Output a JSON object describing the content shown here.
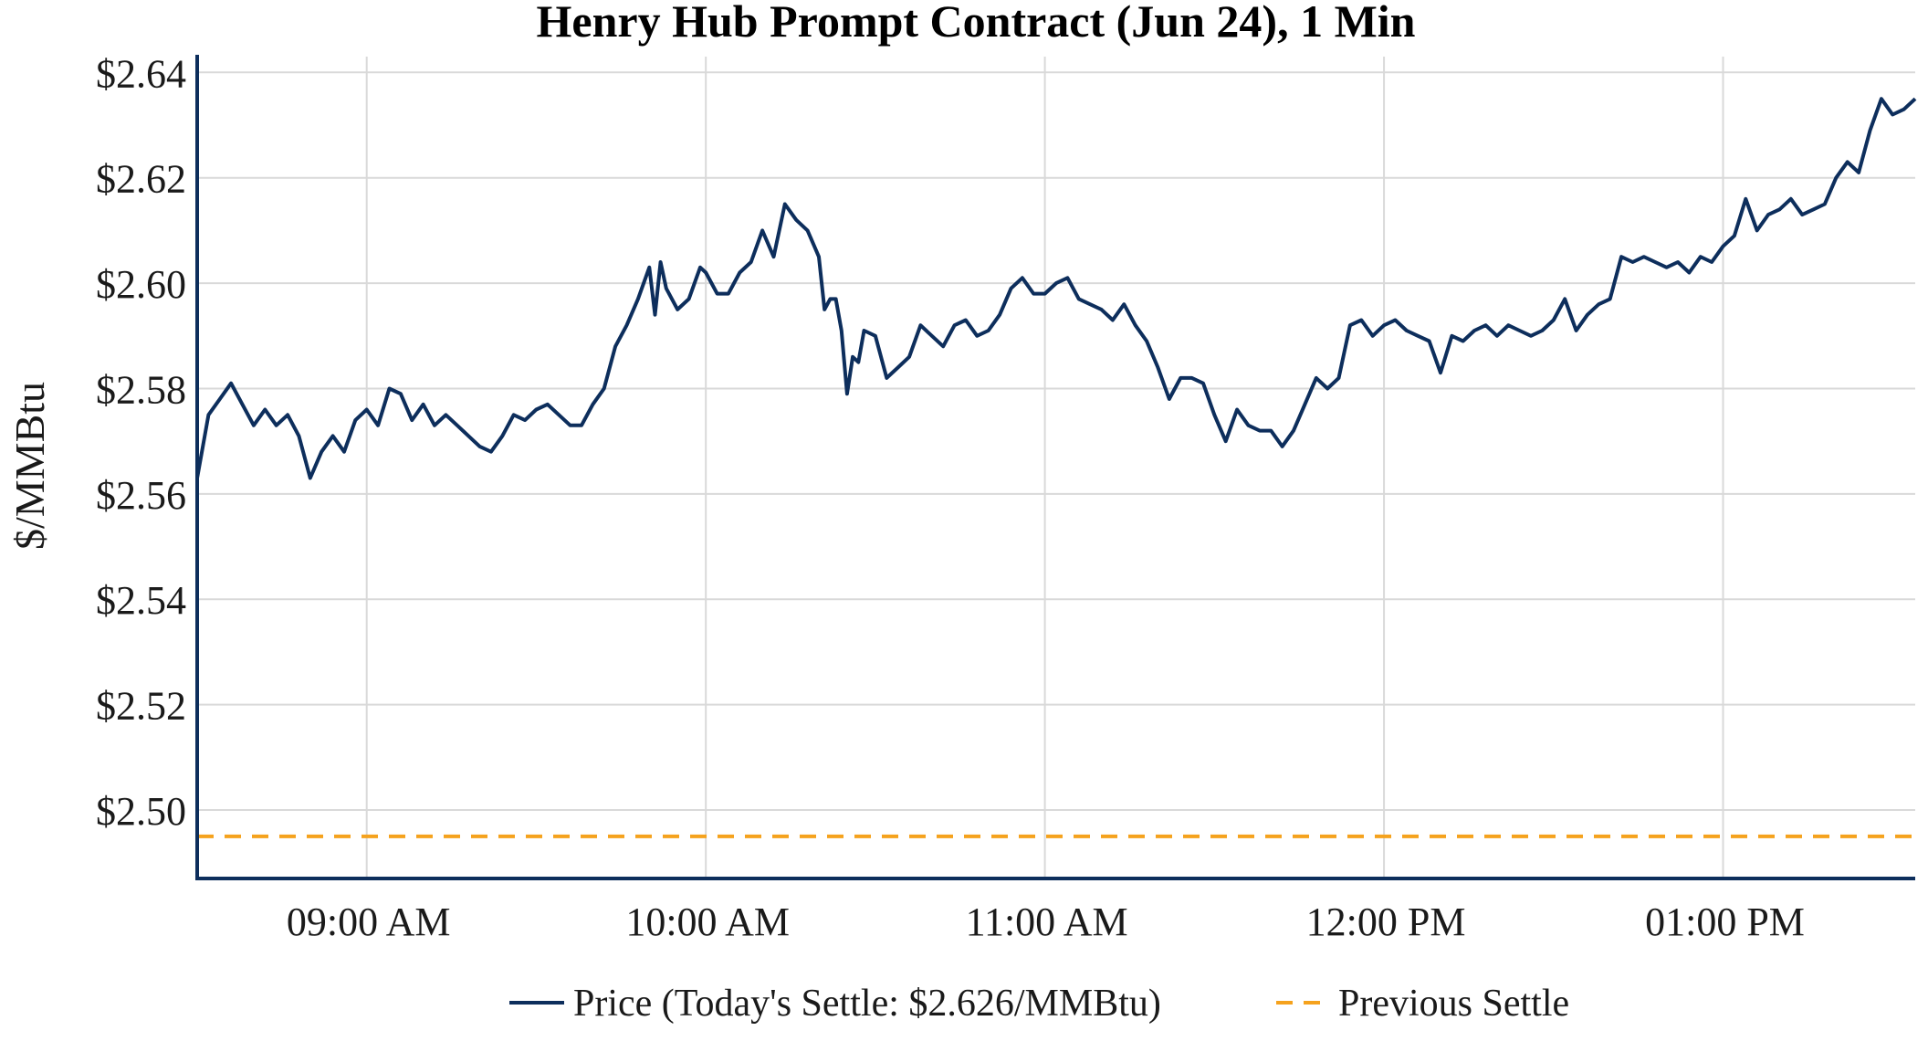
{
  "chart_data": {
    "type": "line",
    "title": "Henry Hub Prompt Contract (Jun 24), 1 Min",
    "xlabel": "",
    "ylabel": "$/MMBtu",
    "x_range": [
      "08:30 AM",
      "01:34 PM"
    ],
    "x_ticks": [
      "09:00 AM",
      "10:00 AM",
      "11:00 AM",
      "12:00 PM",
      "01:00 PM"
    ],
    "ylim": [
      2.487,
      2.643
    ],
    "y_ticks": [
      "$2.50",
      "$2.52",
      "$2.54",
      "$2.56",
      "$2.58",
      "$2.60",
      "$2.62",
      "$2.64"
    ],
    "grid": true,
    "legend_position": "bottom-center",
    "colors": {
      "price": "#0d2e5c",
      "previous_settle": "#f5a21d",
      "grid": "#d9d9d9",
      "axis": "#0d2e5c"
    },
    "series": [
      {
        "name": "Price (Today's Settle: $2.626/MMBtu)",
        "style": "solid",
        "points": [
          [
            "08:30 AM",
            2.563
          ],
          [
            "08:32 AM",
            2.575
          ],
          [
            "08:34 AM",
            2.578
          ],
          [
            "08:36 AM",
            2.581
          ],
          [
            "08:38 AM",
            2.577
          ],
          [
            "08:40 AM",
            2.573
          ],
          [
            "08:42 AM",
            2.576
          ],
          [
            "08:44 AM",
            2.573
          ],
          [
            "08:46 AM",
            2.575
          ],
          [
            "08:48 AM",
            2.571
          ],
          [
            "08:50 AM",
            2.563
          ],
          [
            "08:52 AM",
            2.568
          ],
          [
            "08:54 AM",
            2.571
          ],
          [
            "08:56 AM",
            2.568
          ],
          [
            "08:58 AM",
            2.574
          ],
          [
            "09:00 AM",
            2.576
          ],
          [
            "09:02 AM",
            2.573
          ],
          [
            "09:04 AM",
            2.58
          ],
          [
            "09:06 AM",
            2.579
          ],
          [
            "09:08 AM",
            2.574
          ],
          [
            "09:10 AM",
            2.577
          ],
          [
            "09:12 AM",
            2.573
          ],
          [
            "09:14 AM",
            2.575
          ],
          [
            "09:16 AM",
            2.573
          ],
          [
            "09:18 AM",
            2.571
          ],
          [
            "09:20 AM",
            2.569
          ],
          [
            "09:22 AM",
            2.568
          ],
          [
            "09:24 AM",
            2.571
          ],
          [
            "09:26 AM",
            2.575
          ],
          [
            "09:28 AM",
            2.574
          ],
          [
            "09:30 AM",
            2.576
          ],
          [
            "09:32 AM",
            2.577
          ],
          [
            "09:34 AM",
            2.575
          ],
          [
            "09:36 AM",
            2.573
          ],
          [
            "09:38 AM",
            2.573
          ],
          [
            "09:40 AM",
            2.577
          ],
          [
            "09:42 AM",
            2.58
          ],
          [
            "09:44 AM",
            2.588
          ],
          [
            "09:46 AM",
            2.592
          ],
          [
            "09:48 AM",
            2.597
          ],
          [
            "09:50 AM",
            2.603
          ],
          [
            "09:51 AM",
            2.594
          ],
          [
            "09:52 AM",
            2.604
          ],
          [
            "09:53 AM",
            2.599
          ],
          [
            "09:55 AM",
            2.595
          ],
          [
            "09:57 AM",
            2.597
          ],
          [
            "09:59 AM",
            2.603
          ],
          [
            "10:00 AM",
            2.602
          ],
          [
            "10:02 AM",
            2.598
          ],
          [
            "10:04 AM",
            2.598
          ],
          [
            "10:06 AM",
            2.602
          ],
          [
            "10:08 AM",
            2.604
          ],
          [
            "10:10 AM",
            2.61
          ],
          [
            "10:12 AM",
            2.605
          ],
          [
            "10:14 AM",
            2.615
          ],
          [
            "10:16 AM",
            2.612
          ],
          [
            "10:18 AM",
            2.61
          ],
          [
            "10:20 AM",
            2.605
          ],
          [
            "10:21 AM",
            2.595
          ],
          [
            "10:22 AM",
            2.597
          ],
          [
            "10:23 AM",
            2.597
          ],
          [
            "10:24 AM",
            2.591
          ],
          [
            "10:25 AM",
            2.579
          ],
          [
            "10:26 AM",
            2.586
          ],
          [
            "10:27 AM",
            2.585
          ],
          [
            "10:28 AM",
            2.591
          ],
          [
            "10:30 AM",
            2.59
          ],
          [
            "10:32 AM",
            2.582
          ],
          [
            "10:34 AM",
            2.584
          ],
          [
            "10:36 AM",
            2.586
          ],
          [
            "10:38 AM",
            2.592
          ],
          [
            "10:40 AM",
            2.59
          ],
          [
            "10:42 AM",
            2.588
          ],
          [
            "10:44 AM",
            2.592
          ],
          [
            "10:46 AM",
            2.593
          ],
          [
            "10:48 AM",
            2.59
          ],
          [
            "10:50 AM",
            2.591
          ],
          [
            "10:52 AM",
            2.594
          ],
          [
            "10:54 AM",
            2.599
          ],
          [
            "10:56 AM",
            2.601
          ],
          [
            "10:58 AM",
            2.598
          ],
          [
            "11:00 AM",
            2.598
          ],
          [
            "11:02 AM",
            2.6
          ],
          [
            "11:04 AM",
            2.601
          ],
          [
            "11:06 AM",
            2.597
          ],
          [
            "11:08 AM",
            2.596
          ],
          [
            "11:10 AM",
            2.595
          ],
          [
            "11:12 AM",
            2.593
          ],
          [
            "11:14 AM",
            2.596
          ],
          [
            "11:16 AM",
            2.592
          ],
          [
            "11:18 AM",
            2.589
          ],
          [
            "11:20 AM",
            2.584
          ],
          [
            "11:22 AM",
            2.578
          ],
          [
            "11:24 AM",
            2.582
          ],
          [
            "11:26 AM",
            2.582
          ],
          [
            "11:28 AM",
            2.581
          ],
          [
            "11:30 AM",
            2.575
          ],
          [
            "11:32 AM",
            2.57
          ],
          [
            "11:34 AM",
            2.576
          ],
          [
            "11:36 AM",
            2.573
          ],
          [
            "11:38 AM",
            2.572
          ],
          [
            "11:40 AM",
            2.572
          ],
          [
            "11:42 AM",
            2.569
          ],
          [
            "11:44 AM",
            2.572
          ],
          [
            "11:46 AM",
            2.577
          ],
          [
            "11:48 AM",
            2.582
          ],
          [
            "11:50 AM",
            2.58
          ],
          [
            "11:52 AM",
            2.582
          ],
          [
            "11:54 AM",
            2.592
          ],
          [
            "11:56 AM",
            2.593
          ],
          [
            "11:58 AM",
            2.59
          ],
          [
            "12:00 PM",
            2.592
          ],
          [
            "12:02 PM",
            2.593
          ],
          [
            "12:04 PM",
            2.591
          ],
          [
            "12:06 PM",
            2.59
          ],
          [
            "12:08 PM",
            2.589
          ],
          [
            "12:10 PM",
            2.583
          ],
          [
            "12:12 PM",
            2.59
          ],
          [
            "12:14 PM",
            2.589
          ],
          [
            "12:16 PM",
            2.591
          ],
          [
            "12:18 PM",
            2.592
          ],
          [
            "12:20 PM",
            2.59
          ],
          [
            "12:22 PM",
            2.592
          ],
          [
            "12:24 PM",
            2.591
          ],
          [
            "12:26 PM",
            2.59
          ],
          [
            "12:28 PM",
            2.591
          ],
          [
            "12:30 PM",
            2.593
          ],
          [
            "12:32 PM",
            2.597
          ],
          [
            "12:34 PM",
            2.591
          ],
          [
            "12:36 PM",
            2.594
          ],
          [
            "12:38 PM",
            2.596
          ],
          [
            "12:40 PM",
            2.597
          ],
          [
            "12:42 PM",
            2.605
          ],
          [
            "12:44 PM",
            2.604
          ],
          [
            "12:46 PM",
            2.605
          ],
          [
            "12:48 PM",
            2.604
          ],
          [
            "12:50 PM",
            2.603
          ],
          [
            "12:52 PM",
            2.604
          ],
          [
            "12:54 PM",
            2.602
          ],
          [
            "12:56 PM",
            2.605
          ],
          [
            "12:58 PM",
            2.604
          ],
          [
            "01:00 PM",
            2.607
          ],
          [
            "01:02 PM",
            2.609
          ],
          [
            "01:04 PM",
            2.616
          ],
          [
            "01:06 PM",
            2.61
          ],
          [
            "01:08 PM",
            2.613
          ],
          [
            "01:10 PM",
            2.614
          ],
          [
            "01:12 PM",
            2.616
          ],
          [
            "01:14 PM",
            2.613
          ],
          [
            "01:16 PM",
            2.614
          ],
          [
            "01:18 PM",
            2.615
          ],
          [
            "01:20 PM",
            2.62
          ],
          [
            "01:22 PM",
            2.623
          ],
          [
            "01:24 PM",
            2.621
          ],
          [
            "01:26 PM",
            2.629
          ],
          [
            "01:28 PM",
            2.635
          ],
          [
            "01:30 PM",
            2.632
          ],
          [
            "01:32 PM",
            2.633
          ],
          [
            "01:34 PM",
            2.635
          ]
        ]
      },
      {
        "name": "Previous Settle",
        "style": "dashed",
        "value": 2.495
      }
    ]
  }
}
